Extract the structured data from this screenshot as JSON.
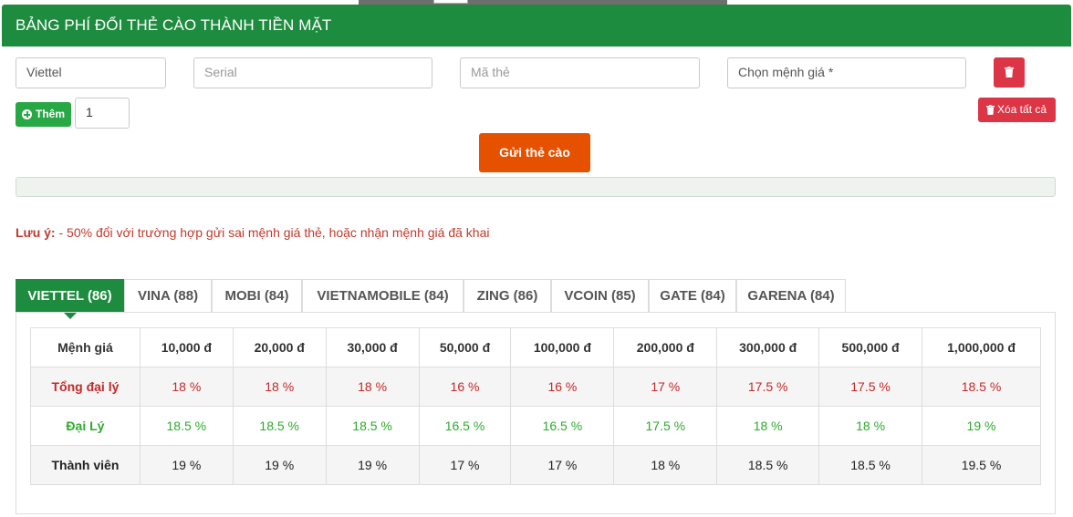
{
  "header": {
    "title": "BẢNG PHÍ ĐỔI THẺ CÀO THÀNH TIỀN MẶT"
  },
  "form": {
    "carrier_value": "Viettel",
    "serial_placeholder": "Serial",
    "code_placeholder": "Mã thẻ",
    "amount_placeholder": "Chọn mệnh giá *",
    "add_label": "Thêm",
    "quantity_value": "1",
    "clear_all_label": "Xóa tất cả",
    "submit_label": "Gửi thẻ cào"
  },
  "note": {
    "label": "Lưu ý:",
    "text": " - 50% đổi với trường hợp gửi sai mệnh giá thẻ, hoặc nhận mệnh giá đã khai"
  },
  "tabs": [
    {
      "label": "VIETTEL (86)",
      "active": true
    },
    {
      "label": "VINA (88)"
    },
    {
      "label": "MOBI (84)"
    },
    {
      "label": "VIETNAMOBILE (84)"
    },
    {
      "label": "ZING (86)"
    },
    {
      "label": "VCOIN (85)"
    },
    {
      "label": "GATE (84)"
    },
    {
      "label": "GARENA (84)"
    }
  ],
  "table": {
    "headers": [
      "Mệnh giá",
      "10,000 đ",
      "20,000 đ",
      "30,000 đ",
      "50,000 đ",
      "100,000 đ",
      "200,000 đ",
      "300,000 đ",
      "500,000 đ",
      "1,000,000 đ"
    ],
    "rows": [
      {
        "label": "Tổng đại lý",
        "color": "#c62828",
        "values": [
          "18 %",
          "18 %",
          "18 %",
          "16 %",
          "16 %",
          "17 %",
          "17.5 %",
          "17.5 %",
          "18.5 %"
        ]
      },
      {
        "label": "Đại Lý",
        "color": "#2eaa2e",
        "values": [
          "18.5 %",
          "18.5 %",
          "18.5 %",
          "16.5 %",
          "16.5 %",
          "17.5 %",
          "18 %",
          "18 %",
          "19 %"
        ]
      },
      {
        "label": "Thành viên",
        "color": "#222222",
        "values": [
          "19 %",
          "19 %",
          "19 %",
          "17 %",
          "17 %",
          "18 %",
          "18.5 %",
          "18.5 %",
          "19.5 %"
        ]
      }
    ]
  },
  "colors": {
    "brand_green": "#1e8c3f",
    "danger": "#dc3545",
    "submit_orange": "#e65100",
    "add_green": "#28a745"
  }
}
